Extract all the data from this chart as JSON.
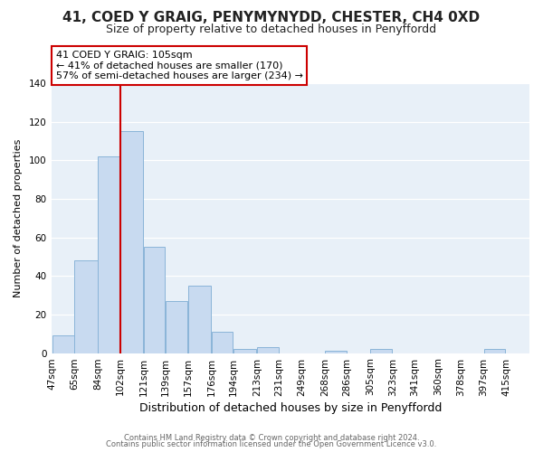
{
  "title": "41, COED Y GRAIG, PENYMYNYDD, CHESTER, CH4 0XD",
  "subtitle": "Size of property relative to detached houses in Penyffordd",
  "xlabel": "Distribution of detached houses by size in Penyffordd",
  "ylabel": "Number of detached properties",
  "bar_color": "#c8daf0",
  "bar_edge_color": "#8ab4d8",
  "vline_color": "#cc0000",
  "vline_x": 102,
  "categories": [
    "47sqm",
    "65sqm",
    "84sqm",
    "102sqm",
    "121sqm",
    "139sqm",
    "157sqm",
    "176sqm",
    "194sqm",
    "213sqm",
    "231sqm",
    "249sqm",
    "268sqm",
    "286sqm",
    "305sqm",
    "323sqm",
    "341sqm",
    "360sqm",
    "378sqm",
    "397sqm",
    "415sqm"
  ],
  "bin_edges": [
    47,
    65,
    84,
    102,
    121,
    139,
    157,
    176,
    194,
    213,
    231,
    249,
    268,
    286,
    305,
    323,
    341,
    360,
    378,
    397,
    415
  ],
  "values": [
    9,
    48,
    102,
    115,
    55,
    27,
    35,
    11,
    2,
    3,
    0,
    0,
    1,
    0,
    2,
    0,
    0,
    0,
    0,
    2
  ],
  "ylim": [
    0,
    140
  ],
  "yticks": [
    0,
    20,
    40,
    60,
    80,
    100,
    120,
    140
  ],
  "annotation_title": "41 COED Y GRAIG: 105sqm",
  "annotation_line1": "← 41% of detached houses are smaller (170)",
  "annotation_line2": "57% of semi-detached houses are larger (234) →",
  "annotation_box_edge": "#cc0000",
  "footer_line1": "Contains HM Land Registry data © Crown copyright and database right 2024.",
  "footer_line2": "Contains public sector information licensed under the Open Government Licence v3.0.",
  "background_color": "#ffffff",
  "plot_bg_color": "#e8f0f8",
  "grid_color": "#ffffff",
  "title_fontsize": 11,
  "subtitle_fontsize": 9,
  "xlabel_fontsize": 9,
  "ylabel_fontsize": 8,
  "tick_fontsize": 7.5,
  "annotation_fontsize": 8,
  "footer_fontsize": 6
}
